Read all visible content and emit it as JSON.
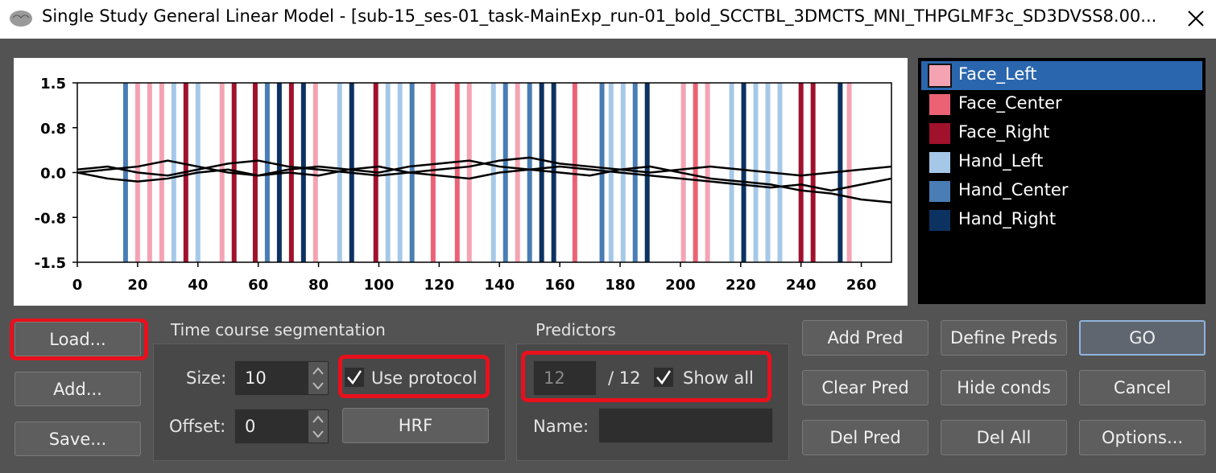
{
  "window": {
    "title": "Single Study General Linear Model - [sub-15_ses-01_task-MainExp_run-01_bold_SCCTBL_3DMCTS_MNI_THPGLMF3c_SD3DVSS8.00..."
  },
  "chart_data": {
    "type": "line",
    "xlim": [
      0,
      270
    ],
    "ylim": [
      -1.5,
      1.5
    ],
    "xticks": [
      0,
      20,
      40,
      60,
      80,
      100,
      120,
      140,
      160,
      180,
      200,
      220,
      240,
      260
    ],
    "yticks": [
      -1.5,
      {
        "value": -0.75,
        "label": "-0.8"
      },
      {
        "value": 0,
        "label": "0.0"
      },
      {
        "value": 0.75,
        "label": "0.8"
      },
      1.5
    ],
    "series": [
      {
        "name": "Face_Left",
        "color": "#f4a3b3",
        "onsets": [
          20,
          24,
          28,
          48,
          79,
          130,
          146,
          201,
          209,
          256
        ]
      },
      {
        "name": "Face_Center",
        "color": "#ec6275",
        "onsets": [
          118,
          126,
          165,
          205
        ]
      },
      {
        "name": "Face_Right",
        "color": "#a0112c",
        "onsets": [
          36,
          52,
          59,
          71,
          99,
          240,
          244
        ]
      },
      {
        "name": "Hand_Left",
        "color": "#a6c8e8",
        "onsets": [
          32,
          40,
          87,
          103,
          107,
          138,
          177,
          181,
          217,
          225,
          229,
          233
        ]
      },
      {
        "name": "Hand_Center",
        "color": "#4a7db5",
        "onsets": [
          16,
          63,
          111,
          142,
          150,
          174,
          185
        ]
      },
      {
        "name": "Hand_Right",
        "color": "#0c3262",
        "onsets": [
          67,
          75,
          91,
          154,
          158,
          189,
          221,
          253
        ]
      }
    ],
    "x": [
      0,
      10,
      20,
      30,
      40,
      50,
      60,
      70,
      80,
      90,
      100,
      110,
      120,
      130,
      140,
      150,
      160,
      170,
      180,
      190,
      200,
      210,
      220,
      230,
      240,
      250,
      260,
      270
    ],
    "timecourses": [
      [
        0,
        0.05,
        0.1,
        0.2,
        0.1,
        0,
        -0.05,
        0.05,
        0.1,
        0.05,
        0,
        0.1,
        0.15,
        0.2,
        0.1,
        0.05,
        0,
        -0.05,
        0.05,
        0.1,
        0,
        -0.1,
        -0.15,
        -0.2,
        -0.3,
        -0.35,
        -0.45,
        -0.5
      ],
      [
        0,
        -0.1,
        -0.15,
        -0.1,
        0,
        0.05,
        -0.05,
        0,
        -0.05,
        0.05,
        0.1,
        0,
        -0.05,
        -0.1,
        0,
        0.05,
        0.1,
        0.05,
        0,
        -0.05,
        -0.1,
        -0.15,
        -0.2,
        -0.25,
        -0.2,
        -0.3,
        -0.2,
        -0.1
      ],
      [
        0.05,
        0.1,
        0,
        -0.05,
        0.05,
        0.15,
        0.2,
        0.1,
        0.05,
        0,
        -0.05,
        0,
        0.05,
        0.1,
        0.2,
        0.25,
        0.15,
        0.1,
        0.05,
        0,
        0.05,
        0.1,
        0.05,
        0,
        -0.05,
        0,
        0.05,
        0.1
      ]
    ]
  },
  "file_buttons": [
    "Load...",
    "Add...",
    "Save..."
  ],
  "segmentation": {
    "title": "Time course segmentation",
    "size_label": "Size:",
    "size_value": "10",
    "offset_label": "Offset:",
    "offset_value": "0",
    "use_protocol": "Use protocol",
    "hrf": "HRF"
  },
  "predictors": {
    "title": "Predictors",
    "current": "12",
    "total": "/ 12",
    "show_all": "Show all",
    "name_label": "Name:"
  },
  "actions": [
    "Add Pred",
    "Define Preds",
    "GO",
    "Clear Pred",
    "Hide conds",
    "Cancel",
    "Del Pred",
    "Del All",
    "Options..."
  ]
}
